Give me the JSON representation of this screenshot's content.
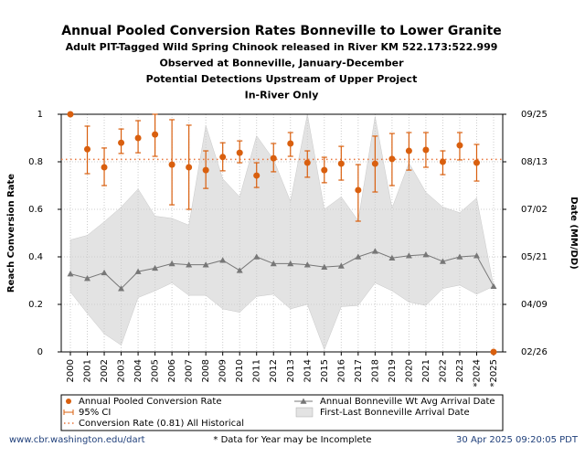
{
  "chart_data": {
    "type": "errorbar",
    "titles": [
      "Annual Pooled Conversion Rates Bonneville to Lower Granite",
      "Adult PIT-Tagged Wild Spring Chinook released in River KM 522.173:522.999",
      "Observed at Bonneville, January-December",
      "Potential Detections Upstream of Upper Project",
      "In-River Only"
    ],
    "ylabel": "Reach Conversion Rate",
    "y2label": "Date (MM/DD)",
    "categories": [
      "2000",
      "2001",
      "2002",
      "2003",
      "2004",
      "2005",
      "2006",
      "2007",
      "2008",
      "2009",
      "2010",
      "2011",
      "2012",
      "2013",
      "2014",
      "2015",
      "2016",
      "2017",
      "2018",
      "2019",
      "2020",
      "2021",
      "2022",
      "2023",
      "*2024",
      "*2025"
    ],
    "ylim": [
      0,
      1
    ],
    "yticks": [
      0,
      0.2,
      0.4,
      0.6,
      0.8,
      1
    ],
    "y2lim": [
      57,
      267
    ],
    "y2ticks": [
      {
        "value": 57,
        "label": "02/26"
      },
      {
        "value": 99,
        "label": "04/09"
      },
      {
        "value": 141,
        "label": "05/21"
      },
      {
        "value": 183,
        "label": "07/02"
      },
      {
        "value": 225,
        "label": "08/13"
      },
      {
        "value": 267,
        "label": "09/25"
      }
    ],
    "grid": true,
    "series": [
      {
        "name": "Annual Pooled Conversion Rate",
        "color": "#d95f0e",
        "ci_name": "95% CI",
        "values": [
          1,
          0.853,
          0.777,
          0.88,
          0.9,
          0.915,
          0.788,
          0.777,
          0.765,
          0.82,
          0.838,
          0.742,
          0.815,
          0.877,
          0.796,
          0.765,
          0.792,
          0.681,
          0.792,
          0.812,
          0.846,
          0.85,
          0.8,
          0.869,
          0.796,
          0
        ],
        "ci_low": [
          null,
          0.75,
          0.7,
          0.835,
          0.838,
          0.823,
          0.619,
          0.6,
          0.688,
          0.762,
          0.796,
          0.692,
          0.758,
          0.823,
          0.735,
          0.712,
          0.723,
          0.55,
          0.673,
          0.7,
          0.765,
          0.777,
          0.746,
          0.808,
          0.719,
          null
        ],
        "ci_high": [
          null,
          0.95,
          0.858,
          0.938,
          0.973,
          1,
          0.977,
          0.954,
          0.846,
          0.88,
          0.888,
          0.796,
          0.877,
          0.923,
          0.846,
          0.819,
          0.865,
          0.788,
          0.908,
          0.919,
          0.923,
          0.923,
          0.846,
          0.923,
          0.873,
          null
        ]
      },
      {
        "name": "Annual Bonneville Wt Avg Arrival Date",
        "color": "#777777",
        "axis": "y2",
        "values": [
          126,
          122,
          127,
          113,
          128,
          131,
          135,
          134,
          134,
          138,
          129,
          141,
          135,
          135,
          134,
          132,
          133,
          141,
          146,
          140,
          142,
          143,
          137,
          141,
          142,
          115
        ]
      },
      {
        "name": "First-Last Bonneville Arrival Date",
        "color": "#e3e3e3",
        "axis": "y2",
        "low": [
          110,
          91,
          73,
          63,
          105,
          111,
          118,
          107,
          107,
          95,
          92,
          106,
          108,
          95,
          99,
          59,
          97,
          98,
          118,
          111,
          101,
          98,
          113,
          116,
          108,
          115
        ],
        "high": [
          156,
          160,
          172,
          185,
          201,
          177,
          175,
          169,
          257,
          210,
          194,
          248,
          227,
          190,
          267,
          183,
          194,
          173,
          265,
          184,
          224,
          198,
          185,
          180,
          193,
          115
        ]
      }
    ],
    "reference": {
      "name": "Conversion Rate (0.81) All Historical",
      "value": 0.81,
      "color": "#e8743b"
    }
  },
  "footer": {
    "left": "www.cbr.washington.edu/dart",
    "center": "* Data for Year may be Incomplete",
    "right": "30 Apr 2025 09:20:05 PDT"
  }
}
